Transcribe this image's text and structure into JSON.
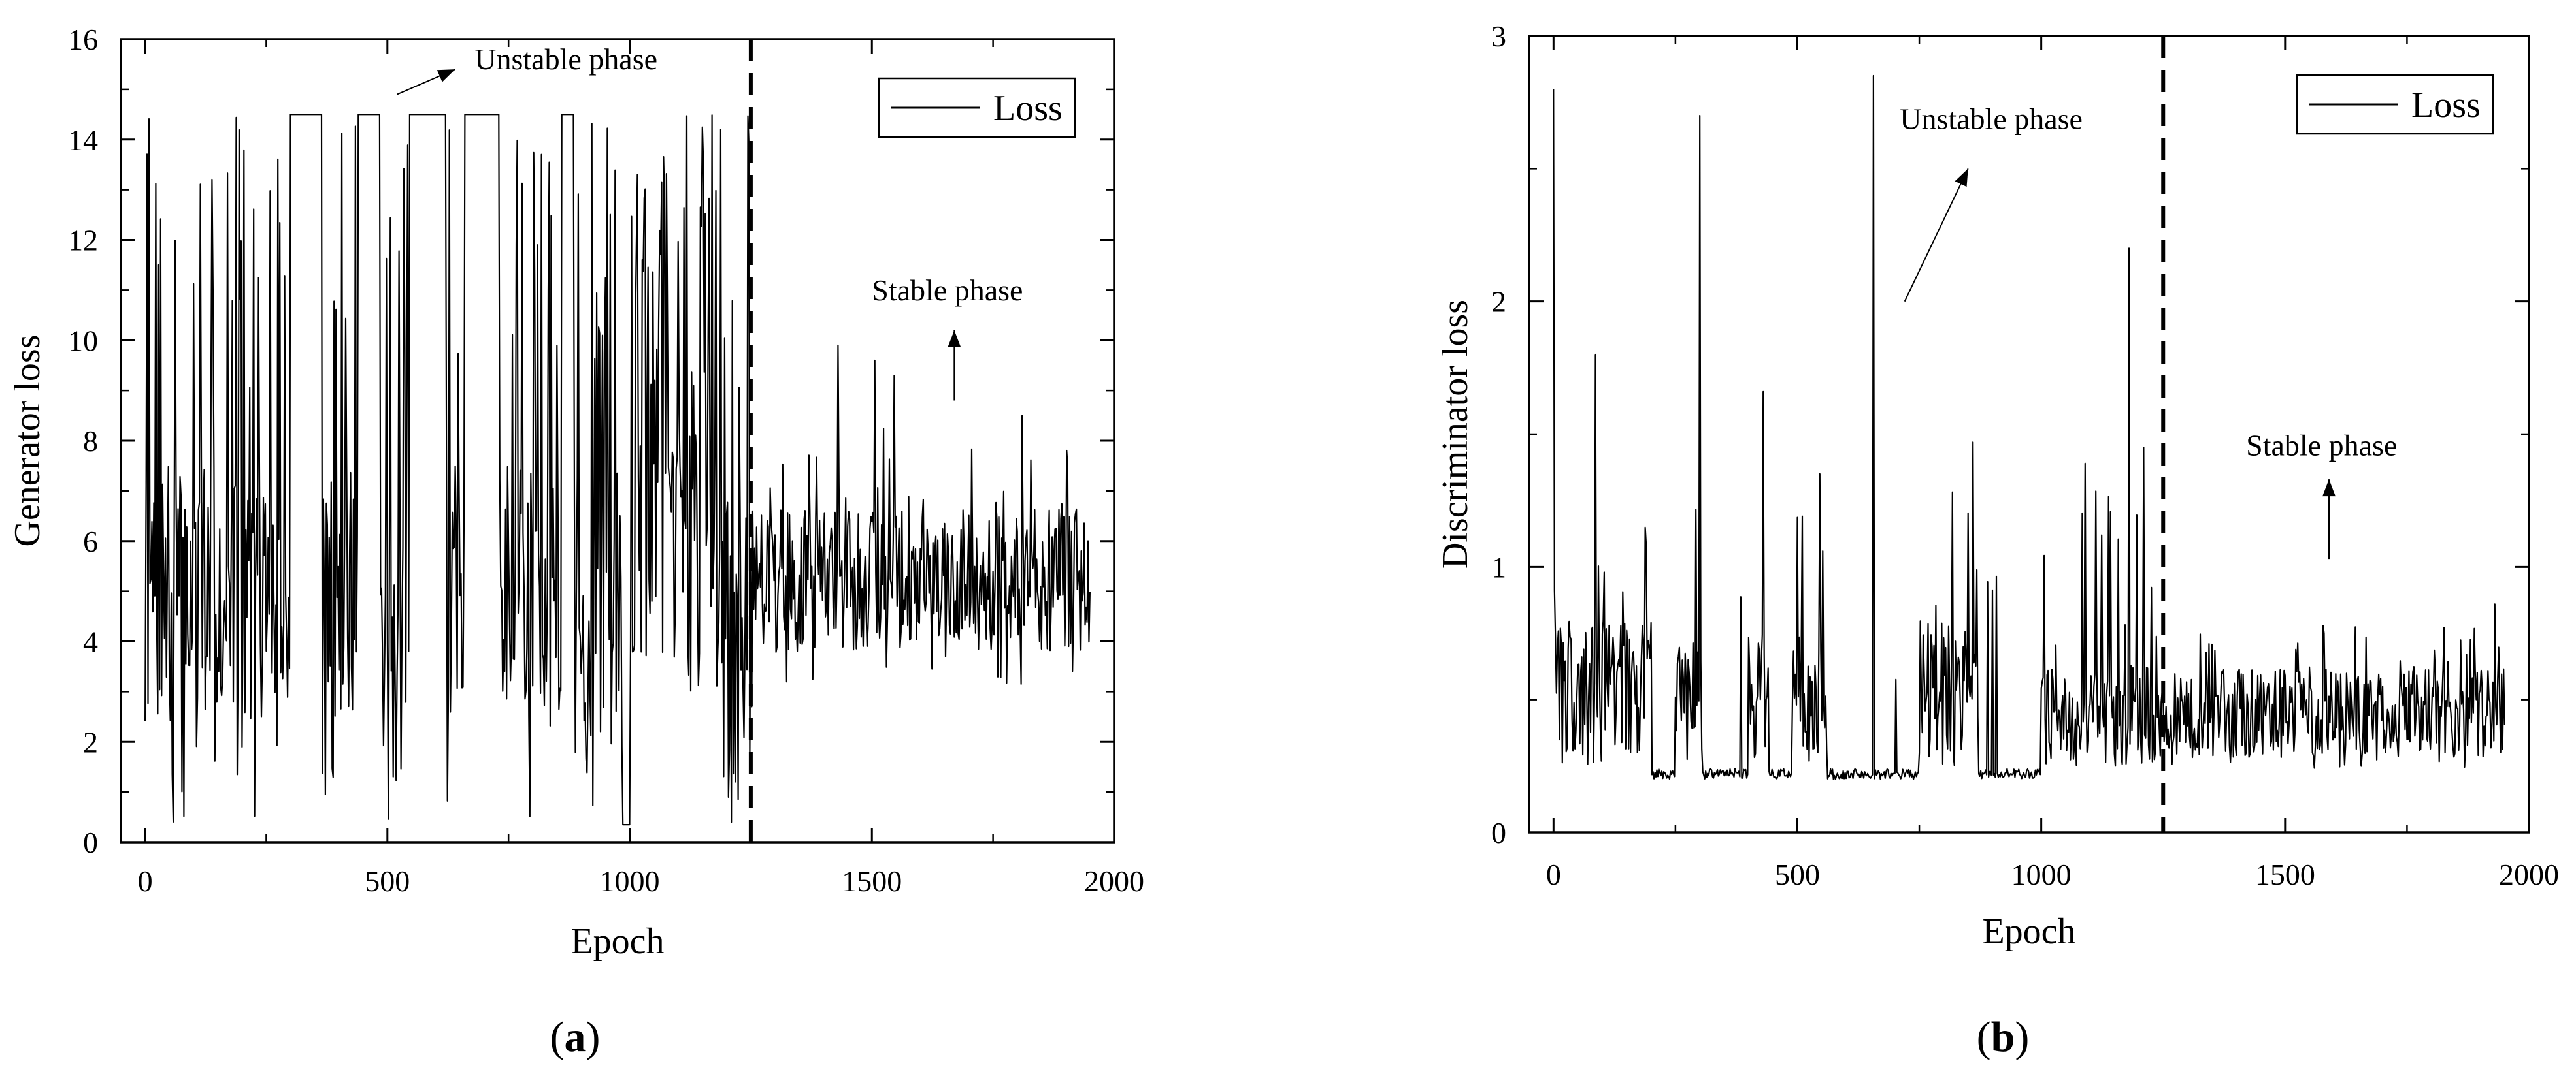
{
  "chart_data": [
    {
      "type": "line",
      "panel_label": "a",
      "xlabel": "Epoch",
      "ylabel": "Generator loss",
      "xlim": [
        -50,
        2000
      ],
      "ylim": [
        0,
        16
      ],
      "xticks": [
        0,
        500,
        1000,
        1500,
        2000
      ],
      "yticks": [
        0,
        2,
        4,
        6,
        8,
        10,
        12,
        14,
        16
      ],
      "legend": {
        "label": "Loss",
        "position": "top-right"
      },
      "divider_x": 1250,
      "annotations": [
        {
          "text": "Unstable phase",
          "x": 680,
          "y": 15.4,
          "arrow_from": [
            520,
            14.9
          ],
          "arrow_to": [
            640,
            15.4
          ]
        },
        {
          "text": "Stable phase",
          "x": 1500,
          "y": 10.8,
          "arrow_from": [
            1670,
            8.8
          ],
          "arrow_to": [
            1670,
            10.2
          ]
        }
      ],
      "series": [
        {
          "name": "Loss",
          "unstable": {
            "x_range": [
              0,
              1250
            ],
            "cap": 14.5,
            "plateaus": [
              [
                300,
                365
              ],
              [
                440,
                485
              ],
              [
                545,
                620
              ],
              [
                660,
                730
              ],
              [
                860,
                885
              ]
            ],
            "dips": [
              [
                985,
                1000,
                0.35
              ]
            ]
          },
          "stable": {
            "x_range": [
              1250,
              1950
            ],
            "mean": 5.2,
            "spread": 0.9,
            "peaks": [
              9.9,
              9.6,
              9.3,
              8.5
            ]
          }
        }
      ]
    },
    {
      "type": "line",
      "panel_label": "b",
      "xlabel": "Epoch",
      "ylabel": "Discriminator loss",
      "xlim": [
        -50,
        2000
      ],
      "ylim": [
        0,
        3
      ],
      "xticks": [
        0,
        500,
        1000,
        1500,
        2000
      ],
      "yticks": [
        0,
        1,
        2,
        3
      ],
      "legend": {
        "label": "Loss",
        "position": "top-right"
      },
      "divider_x": 1250,
      "annotations": [
        {
          "text": "Unstable phase",
          "x": 710,
          "y": 2.65,
          "arrow_from": [
            720,
            2.0
          ],
          "arrow_to": [
            850,
            2.5
          ]
        },
        {
          "text": "Stable phase",
          "x": 1420,
          "y": 1.42,
          "arrow_from": [
            1590,
            1.03
          ],
          "arrow_to": [
            1590,
            1.33
          ]
        }
      ],
      "series": [
        {
          "name": "Loss",
          "spikes": [
            [
              0,
              2.8
            ],
            [
              300,
              2.7
            ],
            [
              655,
              2.85
            ],
            [
              1180,
              2.2
            ],
            [
              85,
              1.8
            ],
            [
              430,
              1.66
            ],
            [
              860,
              1.47
            ],
            [
              1210,
              1.45
            ],
            [
              545,
              1.35
            ],
            [
              1090,
              1.39
            ]
          ],
          "stable": {
            "x_range": [
              1250,
              1950
            ],
            "mean": 0.45,
            "spread": 0.12,
            "peaks": [
              0.86,
              0.8
            ]
          }
        }
      ]
    }
  ]
}
